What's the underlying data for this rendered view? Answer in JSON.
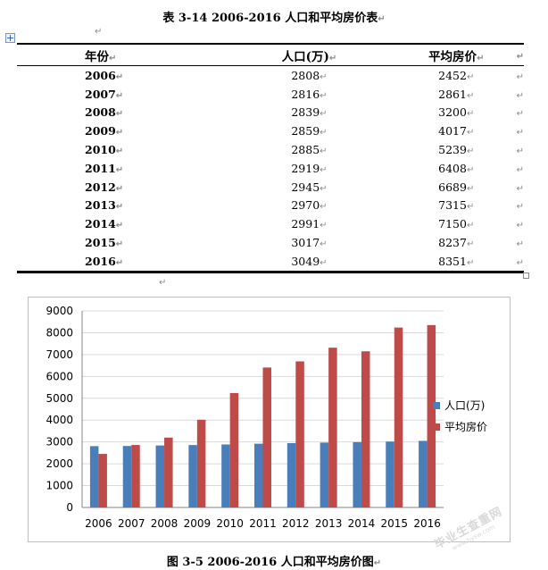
{
  "table": {
    "title": "表 3-14 2006-2016 人口和平均房价表",
    "columns": [
      "年份",
      "人口(万)",
      "平均房价"
    ],
    "rows": [
      [
        "2006",
        "2808",
        "2452"
      ],
      [
        "2007",
        "2816",
        "2861"
      ],
      [
        "2008",
        "2839",
        "3200"
      ],
      [
        "2009",
        "2859",
        "4017"
      ],
      [
        "2010",
        "2885",
        "5239"
      ],
      [
        "2011",
        "2919",
        "6408"
      ],
      [
        "2012",
        "2945",
        "6689"
      ],
      [
        "2013",
        "2970",
        "7315"
      ],
      [
        "2014",
        "2991",
        "7150"
      ],
      [
        "2015",
        "3017",
        "8237"
      ],
      [
        "2016",
        "3049",
        "8351"
      ]
    ]
  },
  "marks": {
    "cell_end": "↵",
    "paragraph": "↵"
  },
  "chart_data": {
    "type": "bar",
    "categories": [
      "2006",
      "2007",
      "2008",
      "2009",
      "2010",
      "2011",
      "2012",
      "2013",
      "2014",
      "2015",
      "2016"
    ],
    "series": [
      {
        "name": "人口(万)",
        "color": "#4a7ebb",
        "values": [
          2808,
          2816,
          2839,
          2859,
          2885,
          2919,
          2945,
          2970,
          2991,
          3017,
          3049
        ]
      },
      {
        "name": "平均房价",
        "color": "#be4b48",
        "values": [
          2452,
          2861,
          3200,
          4017,
          5239,
          6408,
          6689,
          7315,
          7150,
          8237,
          8351
        ]
      }
    ],
    "title": "",
    "xlabel": "",
    "ylabel": "",
    "ylim": [
      0,
      9000
    ],
    "yticks": [
      "0",
      "1000",
      "2000",
      "3000",
      "4000",
      "5000",
      "6000",
      "7000",
      "8000",
      "9000"
    ],
    "grid": true,
    "legend": "right"
  },
  "figure": {
    "caption": "图 3-5 2006-2016 人口和平均房价图"
  },
  "watermark": {
    "main": "毕业生查重网",
    "sub": "www.bysw.com"
  }
}
